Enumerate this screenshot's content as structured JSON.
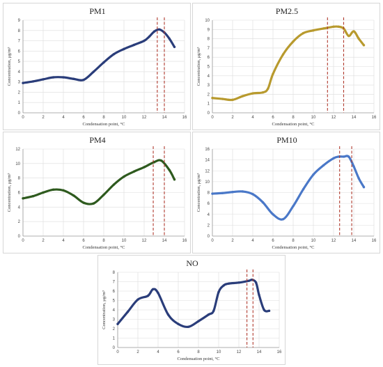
{
  "chart_data": [
    {
      "type": "line",
      "title": "PM1",
      "xlabel": "Condensation point, °C",
      "ylabel": "Concentration, μg/m³",
      "xlim": [
        0,
        16
      ],
      "ylim": [
        0,
        9
      ],
      "xticks": [
        0,
        2,
        4,
        6,
        8,
        10,
        12,
        14,
        16
      ],
      "yticks": [
        0,
        1,
        2,
        3,
        4,
        5,
        6,
        7,
        8,
        9
      ],
      "grid": true,
      "color": "#2a3d7a",
      "vlines": [
        13.3,
        14.0
      ],
      "series": [
        {
          "x": [
            0,
            1,
            2,
            3,
            4,
            5,
            6,
            7,
            8,
            9,
            10,
            11,
            12,
            12.5,
            13,
            13.5,
            14,
            14.5,
            15
          ],
          "y": [
            2.9,
            3.05,
            3.25,
            3.45,
            3.45,
            3.3,
            3.2,
            4.0,
            4.9,
            5.7,
            6.2,
            6.6,
            7.0,
            7.4,
            7.9,
            8.1,
            7.8,
            7.2,
            6.4
          ]
        }
      ]
    },
    {
      "type": "line",
      "title": "PM2.5",
      "xlabel": "Condensation point, °C",
      "ylabel": "Concentration, μg/m³",
      "xlim": [
        0,
        16
      ],
      "ylim": [
        0,
        10
      ],
      "xticks": [
        0,
        2,
        4,
        6,
        8,
        10,
        12,
        14,
        16
      ],
      "yticks": [
        0,
        1,
        2,
        3,
        4,
        5,
        6,
        7,
        8,
        9,
        10
      ],
      "grid": true,
      "color": "#b89a2e",
      "vlines": [
        11.4,
        13.0
      ],
      "series": [
        {
          "x": [
            0,
            1,
            2,
            3,
            4,
            5,
            5.5,
            6,
            7,
            8,
            9,
            10,
            11,
            12,
            12.5,
            13,
            13.5,
            14,
            14.5,
            15
          ],
          "y": [
            1.6,
            1.5,
            1.4,
            1.8,
            2.1,
            2.2,
            2.6,
            4.2,
            6.3,
            7.7,
            8.6,
            8.9,
            9.1,
            9.3,
            9.3,
            9.1,
            8.3,
            8.8,
            8.0,
            7.3
          ]
        }
      ]
    },
    {
      "type": "line",
      "title": "PM4",
      "xlabel": "Condensation point, °C",
      "ylabel": "Concentration, μg/m³",
      "xlim": [
        0,
        16
      ],
      "ylim": [
        0,
        12
      ],
      "xticks": [
        0,
        2,
        4,
        6,
        8,
        10,
        12,
        14,
        16
      ],
      "yticks": [
        0,
        2,
        4,
        6,
        8,
        10,
        12
      ],
      "grid": true,
      "color": "#2e5a1e",
      "vlines": [
        12.9,
        14.0
      ],
      "series": [
        {
          "x": [
            0,
            1,
            2,
            3,
            4,
            5,
            6,
            7,
            8,
            9,
            10,
            11,
            12,
            13,
            13.7,
            14.5,
            15
          ],
          "y": [
            5.2,
            5.5,
            6.0,
            6.4,
            6.3,
            5.6,
            4.6,
            4.5,
            5.7,
            7.1,
            8.2,
            8.9,
            9.5,
            10.2,
            10.4,
            9.1,
            7.8
          ]
        }
      ]
    },
    {
      "type": "line",
      "title": "PM10",
      "xlabel": "Condensation point, °C",
      "ylabel": "Concentration, μg/m³",
      "xlim": [
        0,
        16
      ],
      "ylim": [
        0,
        16
      ],
      "xticks": [
        0,
        2,
        4,
        6,
        8,
        10,
        12,
        14,
        16
      ],
      "yticks": [
        0,
        2,
        4,
        6,
        8,
        10,
        12,
        14,
        16
      ],
      "grid": true,
      "color": "#4a78c8",
      "vlines": [
        12.6,
        13.8
      ],
      "series": [
        {
          "x": [
            0,
            1,
            2,
            3,
            4,
            5,
            6,
            7,
            8,
            9,
            10,
            11,
            12,
            12.5,
            13,
            13.5,
            14,
            14.5,
            15
          ],
          "y": [
            7.8,
            7.9,
            8.1,
            8.2,
            7.7,
            6.2,
            4.0,
            3.1,
            5.5,
            8.6,
            11.3,
            13.0,
            14.3,
            14.6,
            14.6,
            14.6,
            12.8,
            10.6,
            9.0
          ]
        }
      ]
    },
    {
      "type": "line",
      "title": "NO",
      "xlabel": "Condensation point, °C",
      "ylabel": "Concentration, μg/m³",
      "xlim": [
        0,
        16
      ],
      "ylim": [
        0,
        8
      ],
      "xticks": [
        0,
        2,
        4,
        6,
        8,
        10,
        12,
        14,
        16
      ],
      "yticks": [
        0,
        1,
        2,
        3,
        4,
        5,
        6,
        7,
        8
      ],
      "grid": true,
      "color": "#2a3d7a",
      "vlines": [
        12.8,
        13.4
      ],
      "series": [
        {
          "x": [
            0,
            1,
            2,
            3,
            3.5,
            4,
            5,
            6,
            7,
            8,
            9,
            9.5,
            10,
            10.5,
            11,
            12,
            13,
            13.3,
            13.7,
            14,
            14.5,
            15
          ],
          "y": [
            2.5,
            3.8,
            5.1,
            5.5,
            6.2,
            5.8,
            3.5,
            2.5,
            2.2,
            2.8,
            3.5,
            3.9,
            5.9,
            6.6,
            6.8,
            6.9,
            7.1,
            7.2,
            6.9,
            5.6,
            4.0,
            3.9
          ]
        }
      ]
    }
  ]
}
